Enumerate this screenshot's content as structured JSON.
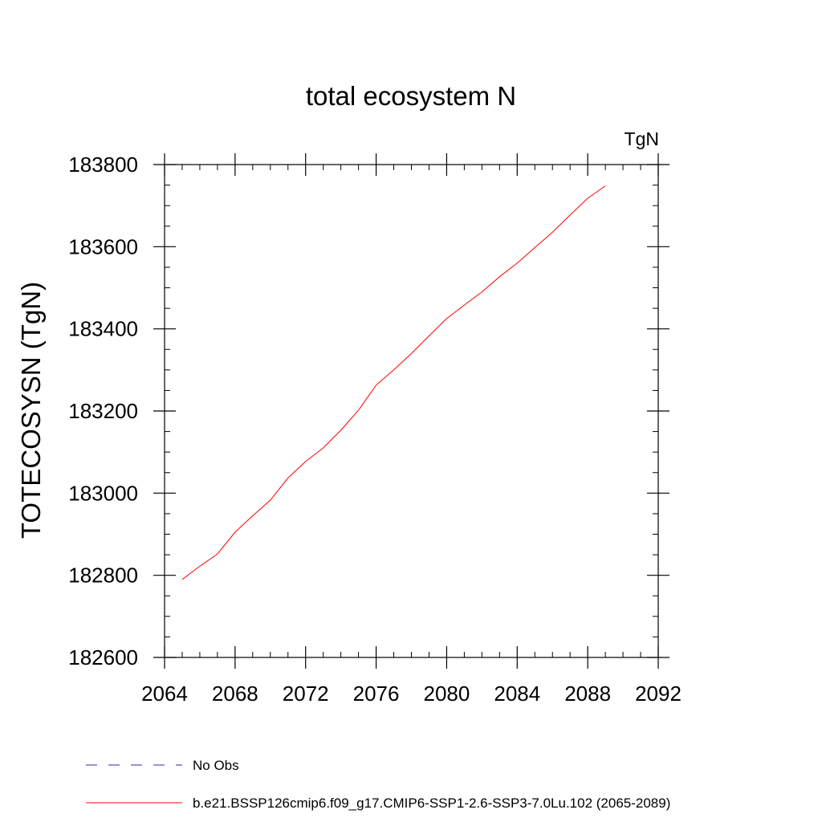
{
  "chart_data": {
    "type": "line",
    "title": "total ecosystem N",
    "units": "TgN",
    "xlabel": "",
    "ylabel": "TOTECOSYSN  (TgN)",
    "xlim": [
      2064,
      2092
    ],
    "ylim": [
      182600,
      183800
    ],
    "xticks": [
      2064,
      2068,
      2072,
      2076,
      2080,
      2084,
      2088,
      2092
    ],
    "yticks": [
      182600,
      182800,
      183000,
      183200,
      183400,
      183600,
      183800
    ],
    "x_minor_step": 1,
    "y_minor_step": 50,
    "series": [
      {
        "name": "b.e21.BSSP126cmip6.f09_g17.CMIP6-SSP1-2.6-SSP3-7.0Lu.102 (2065-2089)",
        "color": "#ff0000",
        "dash": "solid",
        "x": [
          2065,
          2066,
          2067,
          2068,
          2069,
          2070,
          2071,
          2072,
          2073,
          2074,
          2075,
          2076,
          2077,
          2078,
          2079,
          2080,
          2081,
          2082,
          2083,
          2084,
          2085,
          2086,
          2087,
          2088,
          2089
        ],
        "y": [
          182790,
          182822,
          182852,
          182905,
          182945,
          182983,
          183037,
          183077,
          183110,
          183153,
          183202,
          183263,
          183300,
          183340,
          183383,
          183425,
          183458,
          183490,
          183527,
          183560,
          183598,
          183635,
          183677,
          183718,
          183748
        ]
      }
    ],
    "legend": [
      {
        "label": "No Obs",
        "color": "#5a4fcf",
        "dash": "dashed"
      },
      {
        "label": "b.e21.BSSP126cmip6.f09_g17.CMIP6-SSP1-2.6-SSP3-7.0Lu.102 (2065-2089)",
        "color": "#ff0000",
        "dash": "solid"
      }
    ]
  }
}
